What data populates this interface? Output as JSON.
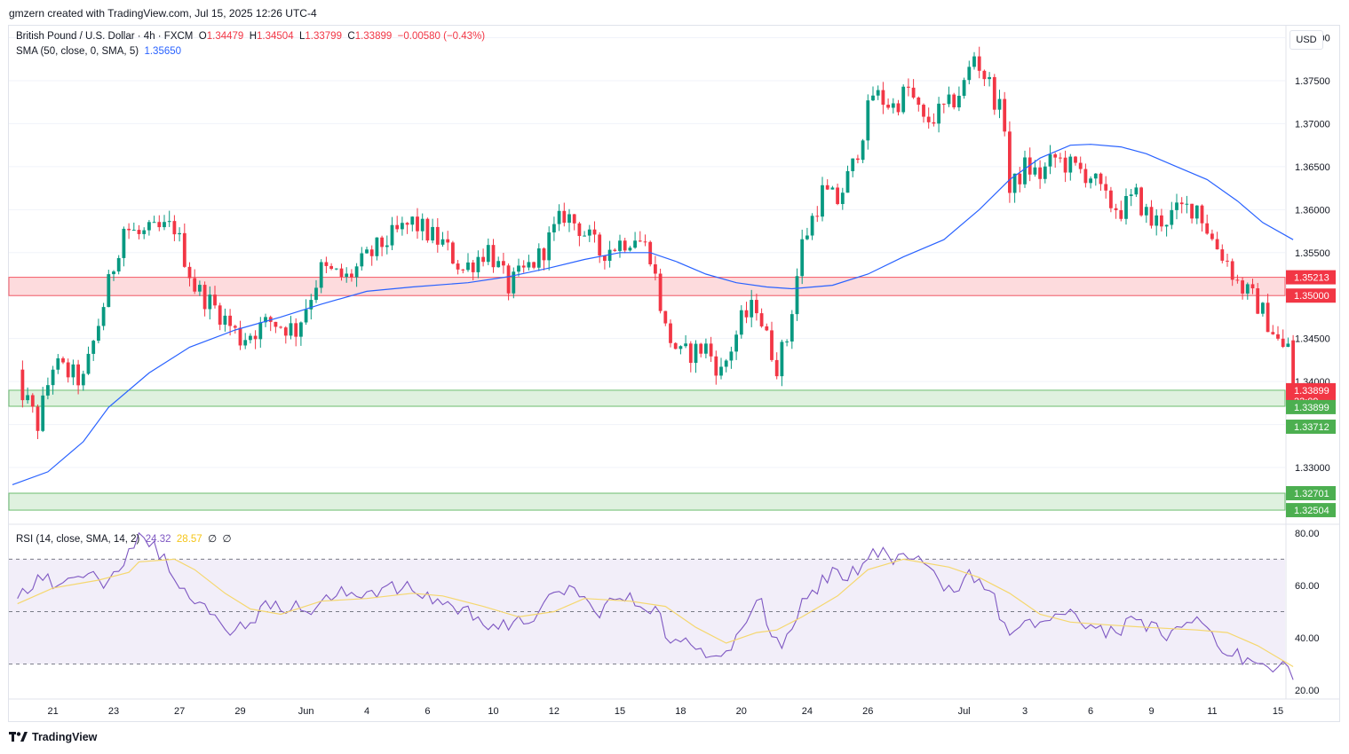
{
  "header": {
    "credit": "gmzern created with TradingView.com, Jul 15, 2025 12:26 UTC-4"
  },
  "legend": {
    "symbol": "British Pound / U.S. Dollar · 4h · FXCM",
    "o_label": "O",
    "o": "1.34479",
    "h_label": "H",
    "h": "1.34504",
    "l_label": "L",
    "l": "1.33799",
    "c_label": "C",
    "c": "1.33899",
    "change": "−0.00580 (−0.43%)",
    "sma_label": "SMA (50, close, 0, SMA, 5)",
    "sma_value": "1.35650",
    "rsi_label": "RSI (14, close, SMA, 14, 2)",
    "rsi_value": "24.32",
    "rsi_ma_value": "28.57",
    "rsi_extra1": "∅",
    "rsi_extra2": "∅"
  },
  "currency_label": "USD",
  "footer": {
    "brand": "TradingView"
  },
  "chart_data": {
    "type": "candlestick",
    "price_axis": {
      "ticks": [
        "1.38000",
        "1.37500",
        "1.37000",
        "1.36500",
        "1.36000",
        "1.35500",
        "1.35000",
        "1.34500",
        "1.34000",
        "1.33500",
        "1.33000"
      ],
      "range": [
        1.3235,
        1.3815
      ]
    },
    "x_labels": [
      "21",
      "23",
      "27",
      "29",
      "Jun",
      "4",
      "6",
      "10",
      "12",
      "15",
      "18",
      "20",
      "24",
      "26",
      "Jul",
      "3",
      "6",
      "9",
      "11",
      "15"
    ],
    "anchors": [
      {
        "d": "May 19 20:00",
        "v": 1.34
      },
      {
        "d": "May 20 12:00",
        "v": 1.335
      },
      {
        "d": "May 21 00:00",
        "v": 1.342
      },
      {
        "d": "May 22 00:00",
        "v": 1.34
      },
      {
        "d": "May 23 08:00",
        "v": 1.358
      },
      {
        "d": "May 23 20:00",
        "v": 1.357
      },
      {
        "d": "May 26 20:00",
        "v": 1.358
      },
      {
        "d": "May 27 12:00",
        "v": 1.351
      },
      {
        "d": "May 28 08:00",
        "v": 1.348
      },
      {
        "d": "May 29 00:00",
        "v": 1.345
      },
      {
        "d": "May 30 00:00",
        "v": 1.347
      },
      {
        "d": "May 30 20:00",
        "v": 1.346
      },
      {
        "d": "Jun 2 12:00",
        "v": 1.353
      },
      {
        "d": "Jun 3 08:00",
        "v": 1.352
      },
      {
        "d": "Jun 4 12:00",
        "v": 1.356
      },
      {
        "d": "Jun 5 12:00",
        "v": 1.3585
      },
      {
        "d": "Jun 6 12:00",
        "v": 1.356
      },
      {
        "d": "Jun 9 00:00",
        "v": 1.353
      },
      {
        "d": "Jun 9 20:00",
        "v": 1.3555
      },
      {
        "d": "Jun 10 12:00",
        "v": 1.351
      },
      {
        "d": "Jun 11 12:00",
        "v": 1.3545
      },
      {
        "d": "Jun 12 08:00",
        "v": 1.3595
      },
      {
        "d": "Jun 12 20:00",
        "v": 1.358
      },
      {
        "d": "Jun 13 12:00",
        "v": 1.355
      },
      {
        "d": "Jun 16 12:00",
        "v": 1.357
      },
      {
        "d": "Jun 17 00:00",
        "v": 1.355
      },
      {
        "d": "Jun 17 12:00",
        "v": 1.346
      },
      {
        "d": "Jun 18 00:00",
        "v": 1.343
      },
      {
        "d": "Jun 18 20:00",
        "v": 1.344
      },
      {
        "d": "Jun 19 08:00",
        "v": 1.341
      },
      {
        "d": "Jun 20 00:00",
        "v": 1.347
      },
      {
        "d": "Jun 20 12:00",
        "v": 1.349
      },
      {
        "d": "Jun 20 20:00",
        "v": 1.345
      },
      {
        "d": "Jun 23 00:00",
        "v": 1.342
      },
      {
        "d": "Jun 23 08:00",
        "v": 1.345
      },
      {
        "d": "Jun 23 20:00",
        "v": 1.356
      },
      {
        "d": "Jun 24 12:00",
        "v": 1.362
      },
      {
        "d": "Jun 25 00:00",
        "v": 1.361
      },
      {
        "d": "Jun 25 12:00",
        "v": 1.365
      },
      {
        "d": "Jun 26 04:00",
        "v": 1.3735
      },
      {
        "d": "Jun 26 20:00",
        "v": 1.372
      },
      {
        "d": "Jun 27 08:00",
        "v": 1.374
      },
      {
        "d": "Jun 27 20:00",
        "v": 1.37
      },
      {
        "d": "Jun 30 12:00",
        "v": 1.372
      },
      {
        "d": "Jul 1 00:00",
        "v": 1.3745
      },
      {
        "d": "Jul 1 08:00",
        "v": 1.378
      },
      {
        "d": "Jul 1 20:00",
        "v": 1.3745
      },
      {
        "d": "Jul 2 08:00",
        "v": 1.37
      },
      {
        "d": "Jul 2 12:00",
        "v": 1.362
      },
      {
        "d": "Jul 3 00:00",
        "v": 1.365
      },
      {
        "d": "Jul 3 12:00",
        "v": 1.364
      },
      {
        "d": "Jul 4 00:00",
        "v": 1.366
      },
      {
        "d": "Jul 4 12:00",
        "v": 1.365
      },
      {
        "d": "Jul 7 00:00",
        "v": 1.364
      },
      {
        "d": "Jul 7 12:00",
        "v": 1.361
      },
      {
        "d": "Jul 8 00:00",
        "v": 1.36
      },
      {
        "d": "Jul 8 12:00",
        "v": 1.3615
      },
      {
        "d": "Jul 9 00:00",
        "v": 1.3585
      },
      {
        "d": "Jul 9 12:00",
        "v": 1.359
      },
      {
        "d": "Jul 10 00:00",
        "v": 1.36
      },
      {
        "d": "Jul 10 12:00",
        "v": 1.3605
      },
      {
        "d": "Jul 11 00:00",
        "v": 1.3565
      },
      {
        "d": "Jul 11 12:00",
        "v": 1.354
      },
      {
        "d": "Jul 11 20:00",
        "v": 1.3515
      },
      {
        "d": "Jul 14 08:00",
        "v": 1.349
      },
      {
        "d": "Jul 14 20:00",
        "v": 1.346
      },
      {
        "d": "Jul 15 04:00",
        "v": 1.3435
      },
      {
        "d": "Jul 15 08:00",
        "v": 1.3445
      },
      {
        "d": "Jul 15 12:00",
        "v": 1.339
      }
    ],
    "sma_anchors": [
      {
        "d": "May 19 16:00",
        "v": 1.328
      },
      {
        "d": "May 20 20:00",
        "v": 1.3295
      },
      {
        "d": "May 22 00:00",
        "v": 1.333
      },
      {
        "d": "May 22 20:00",
        "v": 1.337
      },
      {
        "d": "May 26 00:00",
        "v": 1.341
      },
      {
        "d": "May 27 08:00",
        "v": 1.344
      },
      {
        "d": "May 28 20:00",
        "v": 1.346
      },
      {
        "d": "May 30 08:00",
        "v": 1.3475
      },
      {
        "d": "Jun 2 12:00",
        "v": 1.349
      },
      {
        "d": "Jun 4 00:00",
        "v": 1.3505
      },
      {
        "d": "Jun 5 12:00",
        "v": 1.351
      },
      {
        "d": "Jun 9 04:00",
        "v": 1.3515
      },
      {
        "d": "Jun 10 12:00",
        "v": 1.3522
      },
      {
        "d": "Jun 11 20:00",
        "v": 1.3532
      },
      {
        "d": "Jun 13 00:00",
        "v": 1.3542
      },
      {
        "d": "Jun 16 00:00",
        "v": 1.355
      },
      {
        "d": "Jun 17 00:00",
        "v": 1.355
      },
      {
        "d": "Jun 17 20:00",
        "v": 1.354
      },
      {
        "d": "Jun 18 20:00",
        "v": 1.3525
      },
      {
        "d": "Jun 19 20:00",
        "v": 1.3515
      },
      {
        "d": "Jun 20 20:00",
        "v": 1.351
      },
      {
        "d": "Jun 23 12:00",
        "v": 1.3508
      },
      {
        "d": "Jun 24 20:00",
        "v": 1.3512
      },
      {
        "d": "Jun 26 00:00",
        "v": 1.3525
      },
      {
        "d": "Jun 27 04:00",
        "v": 1.3545
      },
      {
        "d": "Jun 30 08:00",
        "v": 1.3565
      },
      {
        "d": "Jul 1 12:00",
        "v": 1.36
      },
      {
        "d": "Jul 2 12:00",
        "v": 1.3635
      },
      {
        "d": "Jul 3 12:00",
        "v": 1.366
      },
      {
        "d": "Jul 4 12:00",
        "v": 1.3675
      },
      {
        "d": "Jul 7 00:00",
        "v": 1.3676
      },
      {
        "d": "Jul 8 00:00",
        "v": 1.3673
      },
      {
        "d": "Jul 8 20:00",
        "v": 1.3665
      },
      {
        "d": "Jul 9 20:00",
        "v": 1.365
      },
      {
        "d": "Jul 10 20:00",
        "v": 1.3635
      },
      {
        "d": "Jul 11 20:00",
        "v": 1.361
      },
      {
        "d": "Jul 14 12:00",
        "v": 1.3585
      },
      {
        "d": "Jul 15 12:00",
        "v": 1.3565
      }
    ],
    "zones": [
      {
        "name": "resistance",
        "from": 1.35,
        "to": 1.35213,
        "color": "#f23645"
      },
      {
        "name": "support",
        "from": 1.33712,
        "to": 1.33899,
        "color": "#4caf50"
      },
      {
        "name": "support-lower",
        "from": 1.32504,
        "to": 1.32701,
        "color": "#4caf50"
      }
    ],
    "price_labels": [
      {
        "text": "1.35213",
        "v": 1.35213,
        "bg": "#f23645"
      },
      {
        "text": "1.35000",
        "v": 1.35,
        "bg": "#f23645"
      },
      {
        "text": "1.33899",
        "v": 1.33899,
        "bg": "#f23645",
        "sub": "33:09"
      },
      {
        "text": "1.33899",
        "v": 1.33899,
        "bg": "#4caf50",
        "offset": 1
      },
      {
        "text": "1.33712",
        "v": 1.33712,
        "bg": "#4caf50"
      },
      {
        "text": "1.32701",
        "v": 1.32701,
        "bg": "#4caf50"
      },
      {
        "text": "1.32504",
        "v": 1.32504,
        "bg": "#4caf50"
      }
    ],
    "rsi": {
      "ticks": [
        "80.00",
        "60.00",
        "40.00",
        "20.00"
      ],
      "range": [
        17,
        83
      ],
      "levels": [
        70,
        50,
        30
      ],
      "anchors": [
        {
          "d": "May 19 20:00",
          "v": 55
        },
        {
          "d": "May 20 12:00",
          "v": 64
        },
        {
          "d": "May 21 04:00",
          "v": 60
        },
        {
          "d": "May 22 00:00",
          "v": 63
        },
        {
          "d": "May 22 20:00",
          "v": 62
        },
        {
          "d": "May 23 12:00",
          "v": 74
        },
        {
          "d": "May 24 00:00",
          "v": 80
        },
        {
          "d": "May 26 12:00",
          "v": 72
        },
        {
          "d": "May 27 08:00",
          "v": 55
        },
        {
          "d": "May 28 08:00",
          "v": 46
        },
        {
          "d": "May 28 20:00",
          "v": 43
        },
        {
          "d": "May 30 04:00",
          "v": 54
        },
        {
          "d": "Jun 2 00:00",
          "v": 50
        },
        {
          "d": "Jun 3 00:00",
          "v": 56
        },
        {
          "d": "Jun 4 12:00",
          "v": 59
        },
        {
          "d": "Jun 5 12:00",
          "v": 58
        },
        {
          "d": "Jun 6 20:00",
          "v": 52
        },
        {
          "d": "Jun 9 12:00",
          "v": 48
        },
        {
          "d": "Jun 10 12:00",
          "v": 43
        },
        {
          "d": "Jun 11 12:00",
          "v": 50
        },
        {
          "d": "Jun 12 12:00",
          "v": 60
        },
        {
          "d": "Jun 13 08:00",
          "v": 50
        },
        {
          "d": "Jun 16 00:00",
          "v": 55
        },
        {
          "d": "Jun 17 04:00",
          "v": 52
        },
        {
          "d": "Jun 17 16:00",
          "v": 38
        },
        {
          "d": "Jun 18 16:00",
          "v": 36
        },
        {
          "d": "Jun 19 12:00",
          "v": 35
        },
        {
          "d": "Jun 20 08:00",
          "v": 50
        },
        {
          "d": "Jun 20 16:00",
          "v": 55
        },
        {
          "d": "Jun 21 00:00",
          "v": 45
        },
        {
          "d": "Jun 23 04:00",
          "v": 36
        },
        {
          "d": "Jun 23 20:00",
          "v": 55
        },
        {
          "d": "Jun 25 00:00",
          "v": 66
        },
        {
          "d": "Jun 25 16:00",
          "v": 64
        },
        {
          "d": "Jun 26 04:00",
          "v": 74
        },
        {
          "d": "Jun 26 20:00",
          "v": 68
        },
        {
          "d": "Jun 27 12:00",
          "v": 70
        },
        {
          "d": "Jun 30 04:00",
          "v": 62
        },
        {
          "d": "Jun 30 20:00",
          "v": 58
        },
        {
          "d": "Jul 1 04:00",
          "v": 66
        },
        {
          "d": "Jul 1 20:00",
          "v": 58
        },
        {
          "d": "Jul 2 12:00",
          "v": 41
        },
        {
          "d": "Jul 3 12:00",
          "v": 46
        },
        {
          "d": "Jul 4 04:00",
          "v": 49
        },
        {
          "d": "Jul 7 00:00",
          "v": 45
        },
        {
          "d": "Jul 7 20:00",
          "v": 42
        },
        {
          "d": "Jul 8 16:00",
          "v": 47
        },
        {
          "d": "Jul 9 08:00",
          "v": 41
        },
        {
          "d": "Jul 10 00:00",
          "v": 44
        },
        {
          "d": "Jul 10 12:00",
          "v": 48
        },
        {
          "d": "Jul 11 00:00",
          "v": 42
        },
        {
          "d": "Jul 11 16:00",
          "v": 33
        },
        {
          "d": "Jul 14 04:00",
          "v": 31
        },
        {
          "d": "Jul 14 20:00",
          "v": 27
        },
        {
          "d": "Jul 15 04:00",
          "v": 31
        },
        {
          "d": "Jul 15 12:00",
          "v": 24
        }
      ],
      "ma_anchors": [
        {
          "d": "May 19 20:00",
          "v": 53
        },
        {
          "d": "May 21 00:00",
          "v": 59
        },
        {
          "d": "May 22 12:00",
          "v": 62
        },
        {
          "d": "May 23 12:00",
          "v": 65
        },
        {
          "d": "May 24 00:00",
          "v": 69
        },
        {
          "d": "May 26 20:00",
          "v": 70
        },
        {
          "d": "May 27 12:00",
          "v": 66
        },
        {
          "d": "May 28 12:00",
          "v": 57
        },
        {
          "d": "May 29 08:00",
          "v": 51
        },
        {
          "d": "May 30 08:00",
          "v": 49
        },
        {
          "d": "Jun 2 12:00",
          "v": 54
        },
        {
          "d": "Jun 4 00:00",
          "v": 55
        },
        {
          "d": "Jun 5 12:00",
          "v": 57
        },
        {
          "d": "Jun 6 12:00",
          "v": 56
        },
        {
          "d": "Jun 9 16:00",
          "v": 52
        },
        {
          "d": "Jun 10 20:00",
          "v": 48
        },
        {
          "d": "Jun 12 00:00",
          "v": 50
        },
        {
          "d": "Jun 13 00:00",
          "v": 55
        },
        {
          "d": "Jun 16 08:00",
          "v": 54
        },
        {
          "d": "Jun 17 12:00",
          "v": 52
        },
        {
          "d": "Jun 18 12:00",
          "v": 44
        },
        {
          "d": "Jun 19 12:00",
          "v": 38
        },
        {
          "d": "Jun 20 12:00",
          "v": 42
        },
        {
          "d": "Jun 23 00:00",
          "v": 43
        },
        {
          "d": "Jun 23 20:00",
          "v": 48
        },
        {
          "d": "Jun 25 00:00",
          "v": 56
        },
        {
          "d": "Jun 26 00:00",
          "v": 66
        },
        {
          "d": "Jun 27 04:00",
          "v": 70
        },
        {
          "d": "Jun 30 12:00",
          "v": 67
        },
        {
          "d": "Jul 1 12:00",
          "v": 63
        },
        {
          "d": "Jul 2 12:00",
          "v": 57
        },
        {
          "d": "Jul 3 12:00",
          "v": 49
        },
        {
          "d": "Jul 4 12:00",
          "v": 46
        },
        {
          "d": "Jul 7 12:00",
          "v": 45
        },
        {
          "d": "Jul 8 20:00",
          "v": 44
        },
        {
          "d": "Jul 10 12:00",
          "v": 43
        },
        {
          "d": "Jul 11 12:00",
          "v": 42
        },
        {
          "d": "Jul 14 08:00",
          "v": 37
        },
        {
          "d": "Jul 15 12:00",
          "v": 29
        }
      ]
    }
  }
}
